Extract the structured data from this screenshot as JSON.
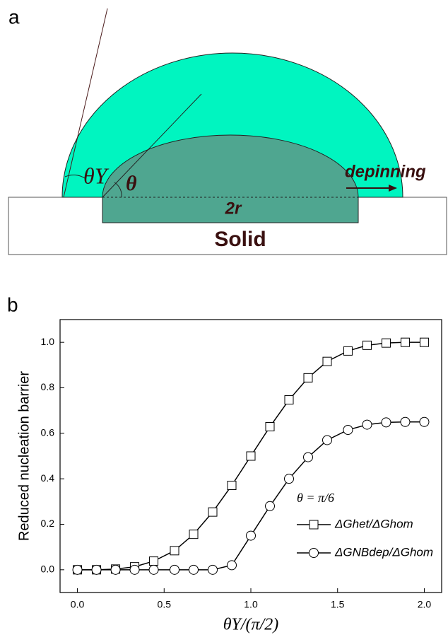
{
  "diagram": {
    "panel_label": "a",
    "theta_y": "θY",
    "theta": "θ",
    "arrow_label": "depinning",
    "width_label": "2r",
    "base_label": "Solid"
  },
  "chart_data": {
    "type": "line",
    "panel_label": "b",
    "x_label": "θY/(π/2)",
    "y_label": "Reduced nucleation barrier",
    "annotation": "θ = π/6",
    "x": [
      0,
      0.11,
      0.22,
      0.33,
      0.44,
      0.56,
      0.67,
      0.78,
      0.89,
      1,
      1.11,
      1.22,
      1.33,
      1.44,
      1.56,
      1.67,
      1.78,
      1.89,
      2
    ],
    "series": [
      {
        "name": "ΔGhet/ΔGhom",
        "color": "#000000",
        "marker": "square",
        "values": [
          0,
          0,
          0.003,
          0.013,
          0.038,
          0.084,
          0.156,
          0.254,
          0.371,
          0.5,
          0.629,
          0.747,
          0.844,
          0.916,
          0.962,
          0.987,
          0.997,
          1,
          1
        ]
      },
      {
        "name": "ΔGNBdep/ΔGhom",
        "color": "#000000",
        "marker": "circle",
        "values": [
          0,
          0,
          0,
          0,
          0,
          0,
          0,
          0,
          0.02,
          0.15,
          0.28,
          0.4,
          0.495,
          0.57,
          0.615,
          0.638,
          0.648,
          0.65,
          0.65
        ]
      }
    ],
    "xlim": [
      -0.1,
      2.1
    ],
    "xticks": [
      {
        "value": 0,
        "label": "0.0"
      },
      0.5,
      {
        "value": 1,
        "label": "1.0"
      },
      1.5,
      {
        "value": 2,
        "label": "2.0"
      }
    ],
    "ylim": [
      -0.1,
      1.1
    ],
    "yticks": [
      {
        "value": 0,
        "label": "0.0"
      },
      0.2,
      0.4,
      0.6,
      0.8,
      {
        "value": 1,
        "label": "1.0"
      }
    ],
    "grid": false,
    "legend": "lower-right"
  }
}
